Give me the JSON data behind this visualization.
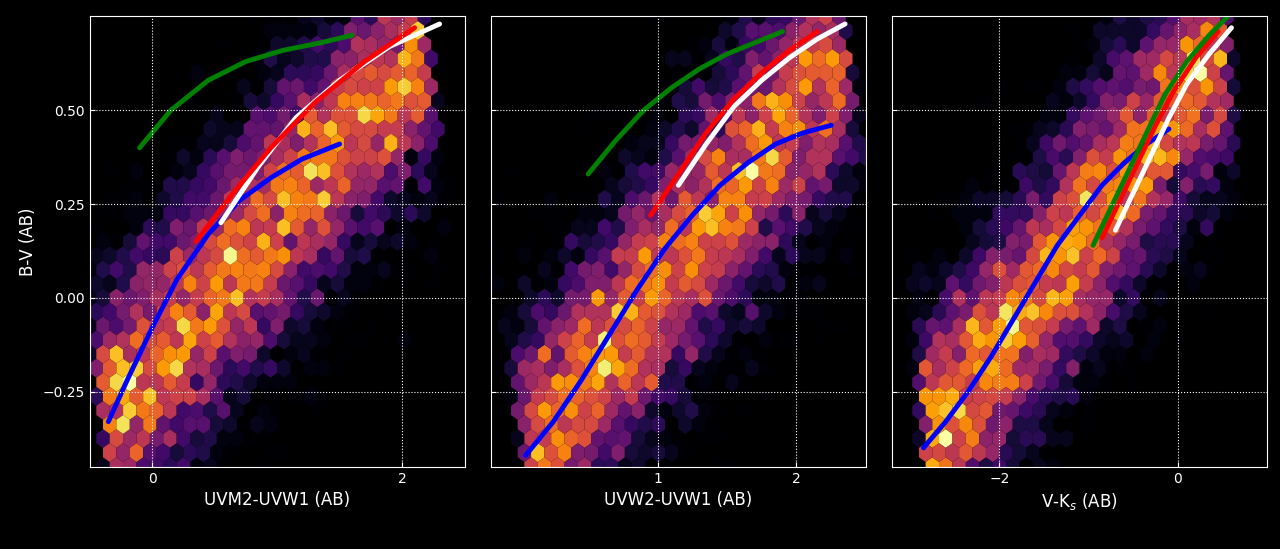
{
  "panels": [
    {
      "xlabel": "UVM2-UVW1 (AB)",
      "xlim": [
        -0.5,
        2.5
      ],
      "xticks": [
        0,
        2
      ]
    },
    {
      "xlabel": "UVW2-UVW1 (AB)",
      "xlim": [
        -0.2,
        2.5
      ],
      "xticks": [
        1,
        2
      ]
    },
    {
      "xlabel": "V-K$_s$ (AB)",
      "xlim": [
        -3.2,
        1.0
      ],
      "xticks": [
        -2,
        0
      ]
    }
  ],
  "ylabel": "B-V (AB)",
  "ylim": [
    -0.45,
    0.75
  ],
  "yticks": [
    -0.25,
    0.0,
    0.25,
    0.5
  ],
  "background_color": "black",
  "grid_color": "white",
  "grid_style": "dotted",
  "line_width": 3.5,
  "n_points": 9000,
  "panel1_curves": {
    "white": {
      "x": [
        0.55,
        0.85,
        1.15,
        1.5,
        1.9,
        2.3
      ],
      "y": [
        0.2,
        0.35,
        0.48,
        0.58,
        0.67,
        0.73
      ]
    },
    "red": {
      "x": [
        0.35,
        0.65,
        0.95,
        1.3,
        1.7,
        2.1
      ],
      "y": [
        0.15,
        0.28,
        0.4,
        0.52,
        0.63,
        0.72
      ]
    },
    "green": {
      "x": [
        -0.1,
        0.15,
        0.45,
        0.75,
        1.05,
        1.35,
        1.6
      ],
      "y": [
        0.4,
        0.5,
        0.58,
        0.63,
        0.66,
        0.68,
        0.7
      ]
    },
    "blue": {
      "x": [
        -0.35,
        -0.2,
        0.0,
        0.2,
        0.45,
        0.7,
        0.95,
        1.2,
        1.5
      ],
      "y": [
        -0.33,
        -0.22,
        -0.08,
        0.05,
        0.17,
        0.26,
        0.32,
        0.37,
        0.41
      ]
    }
  },
  "panel2_curves": {
    "white": {
      "x": [
        1.15,
        1.35,
        1.55,
        1.75,
        1.95,
        2.15,
        2.35
      ],
      "y": [
        0.3,
        0.41,
        0.51,
        0.58,
        0.64,
        0.69,
        0.73
      ]
    },
    "red": {
      "x": [
        0.95,
        1.15,
        1.35,
        1.55,
        1.75,
        1.95,
        2.15
      ],
      "y": [
        0.22,
        0.33,
        0.44,
        0.53,
        0.6,
        0.66,
        0.71
      ]
    },
    "green": {
      "x": [
        0.5,
        0.7,
        0.9,
        1.1,
        1.3,
        1.5,
        1.7,
        1.9
      ],
      "y": [
        0.33,
        0.42,
        0.5,
        0.56,
        0.61,
        0.65,
        0.68,
        0.71
      ]
    },
    "blue": {
      "x": [
        0.05,
        0.25,
        0.45,
        0.65,
        0.85,
        1.05,
        1.25,
        1.45,
        1.65,
        1.85,
        2.05,
        2.25
      ],
      "y": [
        -0.42,
        -0.33,
        -0.22,
        -0.1,
        0.02,
        0.13,
        0.22,
        0.3,
        0.36,
        0.41,
        0.44,
        0.46
      ]
    }
  },
  "panel3_curves": {
    "white": {
      "x": [
        -0.7,
        -0.5,
        -0.3,
        -0.1,
        0.1,
        0.35,
        0.6
      ],
      "y": [
        0.18,
        0.28,
        0.38,
        0.48,
        0.57,
        0.65,
        0.72
      ]
    },
    "red": {
      "x": [
        -0.85,
        -0.65,
        -0.45,
        -0.25,
        -0.05,
        0.2,
        0.45
      ],
      "y": [
        0.16,
        0.26,
        0.36,
        0.46,
        0.55,
        0.64,
        0.71
      ]
    },
    "green": {
      "x": [
        -0.95,
        -0.75,
        -0.55,
        -0.35,
        -0.15,
        0.1,
        0.35,
        0.6
      ],
      "y": [
        0.14,
        0.24,
        0.34,
        0.44,
        0.54,
        0.63,
        0.7,
        0.76
      ]
    },
    "blue": {
      "x": [
        -2.85,
        -2.6,
        -2.35,
        -2.1,
        -1.85,
        -1.6,
        -1.35,
        -1.1,
        -0.85,
        -0.6,
        -0.35,
        -0.1
      ],
      "y": [
        -0.4,
        -0.33,
        -0.25,
        -0.16,
        -0.06,
        0.04,
        0.14,
        0.22,
        0.3,
        0.36,
        0.41,
        0.45
      ]
    }
  },
  "panel1_locus": {
    "x_range": [
      -0.4,
      2.2
    ],
    "y_range": [
      -0.33,
      0.68
    ],
    "spread_perp": 0.18,
    "n": 9000
  },
  "panel2_locus": {
    "x_range": [
      0.05,
      2.35
    ],
    "y_range": [
      -0.42,
      0.68
    ],
    "spread_perp": 0.18,
    "n": 9000
  },
  "panel3_locus": {
    "x_range": [
      -2.85,
      0.55
    ],
    "y_range": [
      -0.4,
      0.7
    ],
    "spread_perp": 0.18,
    "n": 9000
  }
}
